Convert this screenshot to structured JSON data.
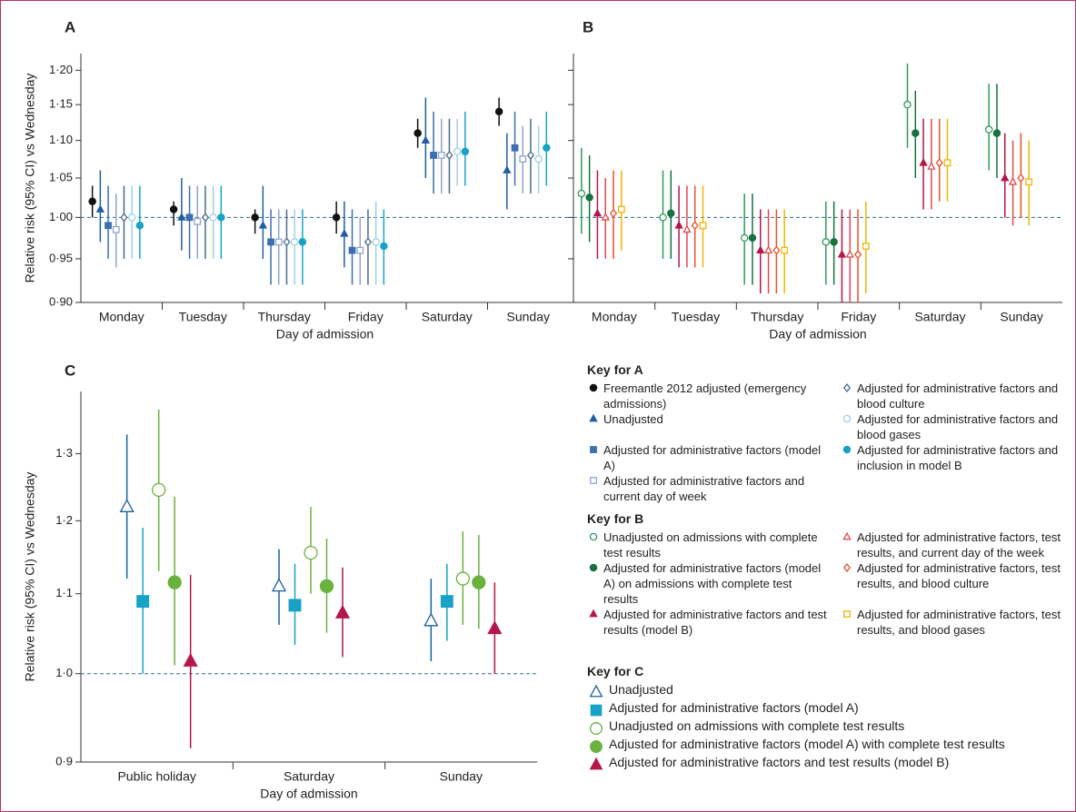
{
  "chart_data": [
    {
      "type": "errorbar",
      "label": "A",
      "y_label": "Relative risk (95% CI) vs Wednesday",
      "x_label": "Day of admission",
      "legend_title": "Key for A",
      "legend_columns": 2,
      "log_y": true,
      "refline": 1,
      "ytick_labels": true,
      "categories": [
        "Monday",
        "Tuesday",
        "Thursday",
        "Friday",
        "Saturday",
        "Sunday"
      ],
      "ylim": [
        0.9,
        1.225
      ],
      "yticks": [
        {
          "value": 0.9,
          "label": "0·90"
        },
        {
          "value": 0.95,
          "label": "0·95"
        },
        {
          "value": 1.0,
          "label": "1·00"
        },
        {
          "value": 1.05,
          "label": "1·05"
        },
        {
          "value": 1.1,
          "label": "1·10"
        },
        {
          "value": 1.15,
          "label": "1·15"
        },
        {
          "value": 1.2,
          "label": "1·20"
        }
      ],
      "series": [
        {
          "name": "Freemantle 2012 adjusted (emergency admissions)",
          "color": "#111111",
          "marker": "circle",
          "filled": true,
          "values": [
            1.02,
            1.01,
            1.0,
            1.0,
            1.11,
            1.14
          ],
          "lower": [
            1.0,
            0.99,
            0.98,
            0.98,
            1.09,
            1.12
          ],
          "upper": [
            1.04,
            1.02,
            1.01,
            1.02,
            1.13,
            1.16
          ]
        },
        {
          "name": "Unadjusted",
          "color": "#1f5fa0",
          "marker": "triangle",
          "filled": true,
          "values": [
            1.01,
            1.0,
            0.99,
            0.98,
            1.1,
            1.06
          ],
          "lower": [
            0.97,
            0.96,
            0.95,
            0.94,
            1.05,
            1.01
          ],
          "upper": [
            1.06,
            1.05,
            1.04,
            1.02,
            1.16,
            1.11
          ]
        },
        {
          "name": "Adjusted for administrative factors (model A)",
          "color": "#3d6fae",
          "marker": "square",
          "filled": true,
          "values": [
            0.99,
            1.0,
            0.97,
            0.96,
            1.08,
            1.09
          ],
          "lower": [
            0.95,
            0.95,
            0.92,
            0.92,
            1.03,
            1.04
          ],
          "upper": [
            1.04,
            1.04,
            1.01,
            1.01,
            1.14,
            1.14
          ]
        },
        {
          "name": "Adjusted for administrative factors and current day of week",
          "color": "#8fa3d2",
          "marker": "square",
          "filled": false,
          "values": [
            0.985,
            0.995,
            0.97,
            0.96,
            1.08,
            1.075
          ],
          "lower": [
            0.94,
            0.95,
            0.92,
            0.92,
            1.03,
            1.03
          ],
          "upper": [
            1.03,
            1.04,
            1.01,
            1.0,
            1.13,
            1.12
          ]
        },
        {
          "name": "Adjusted for administrative factors and blood culture",
          "color": "#4c6b8c",
          "marker": "diamond",
          "filled": false,
          "values": [
            1.0,
            1.0,
            0.97,
            0.97,
            1.08,
            1.08
          ],
          "lower": [
            0.95,
            0.95,
            0.92,
            0.92,
            1.03,
            1.03
          ],
          "upper": [
            1.04,
            1.04,
            1.01,
            1.01,
            1.13,
            1.13
          ]
        },
        {
          "name": "Adjusted for administrative factors and blood gases",
          "color": "#9fd0e8",
          "marker": "circle",
          "filled": false,
          "values": [
            1.0,
            1.0,
            0.97,
            0.97,
            1.085,
            1.075
          ],
          "lower": [
            0.95,
            0.95,
            0.92,
            0.92,
            1.04,
            1.03
          ],
          "upper": [
            1.04,
            1.04,
            1.01,
            1.02,
            1.13,
            1.12
          ]
        },
        {
          "name": "Adjusted for administrative factors and inclusion in model B",
          "color": "#17a2c6",
          "marker": "circle",
          "filled": true,
          "values": [
            0.99,
            1.0,
            0.97,
            0.965,
            1.085,
            1.09
          ],
          "lower": [
            0.95,
            0.95,
            0.92,
            0.92,
            1.04,
            1.04
          ],
          "upper": [
            1.04,
            1.04,
            1.01,
            1.01,
            1.14,
            1.14
          ]
        }
      ]
    },
    {
      "type": "errorbar",
      "label": "B",
      "x_label": "Day of admission",
      "legend_title": "Key for B",
      "legend_columns": 2,
      "log_y": true,
      "refline": 1,
      "ytick_labels": false,
      "categories": [
        "Monday",
        "Tuesday",
        "Thursday",
        "Friday",
        "Saturday",
        "Sunday"
      ],
      "ylim": [
        0.9,
        1.225
      ],
      "yticks": [
        0.9,
        0.95,
        1.0,
        1.05,
        1.1,
        1.15,
        1.2
      ],
      "series": [
        {
          "name": "Unadjusted on admissions with complete test results",
          "color": "#2f9a5a",
          "marker": "circle",
          "filled": false,
          "values": [
            1.03,
            1.0,
            0.975,
            0.97,
            1.15,
            1.115
          ],
          "lower": [
            0.98,
            0.95,
            0.92,
            0.92,
            1.09,
            1.06
          ],
          "upper": [
            1.09,
            1.06,
            1.03,
            1.02,
            1.21,
            1.18
          ]
        },
        {
          "name": "Adjusted for administrative factors (model A) on admissions with complete test results",
          "color": "#17723f",
          "marker": "circle",
          "filled": true,
          "values": [
            1.025,
            1.005,
            0.975,
            0.97,
            1.11,
            1.11
          ],
          "lower": [
            0.97,
            0.95,
            0.92,
            0.92,
            1.05,
            1.05
          ],
          "upper": [
            1.08,
            1.06,
            1.03,
            1.02,
            1.17,
            1.18
          ]
        },
        {
          "name": "Adjusted for administrative factors and test results (model B)",
          "color": "#b5174a",
          "marker": "triangle",
          "filled": true,
          "values": [
            1.005,
            0.99,
            0.96,
            0.955,
            1.07,
            1.05
          ],
          "lower": [
            0.95,
            0.94,
            0.91,
            0.9,
            1.01,
            1.0
          ],
          "upper": [
            1.06,
            1.04,
            1.01,
            1.01,
            1.13,
            1.11
          ]
        },
        {
          "name": "Adjusted for administrative factors, test results, and current day of the week",
          "color": "#e0484e",
          "marker": "triangle",
          "filled": false,
          "values": [
            1.0,
            0.985,
            0.96,
            0.955,
            1.065,
            1.045
          ],
          "lower": [
            0.95,
            0.94,
            0.91,
            0.9,
            1.01,
            0.99
          ],
          "upper": [
            1.05,
            1.04,
            1.01,
            1.01,
            1.13,
            1.1
          ]
        },
        {
          "name": "Adjusted for administrative factors, test results, and blood culture",
          "color": "#e8502e",
          "marker": "diamond",
          "filled": false,
          "values": [
            1.005,
            0.99,
            0.96,
            0.955,
            1.07,
            1.05
          ],
          "lower": [
            0.95,
            0.94,
            0.91,
            0.9,
            1.02,
            1.0
          ],
          "upper": [
            1.06,
            1.04,
            1.01,
            1.01,
            1.13,
            1.11
          ]
        },
        {
          "name": "Adjusted for administrative factors, test results, and blood gases",
          "color": "#f5b400",
          "marker": "square",
          "filled": false,
          "values": [
            1.01,
            0.99,
            0.96,
            0.965,
            1.07,
            1.045
          ],
          "lower": [
            0.96,
            0.94,
            0.91,
            0.91,
            1.02,
            0.99
          ],
          "upper": [
            1.06,
            1.04,
            1.01,
            1.02,
            1.13,
            1.1
          ]
        }
      ]
    },
    {
      "type": "errorbar",
      "label": "C",
      "y_label": "Relative risk (95% CI) vs Wednesday",
      "x_label": "Day of admission",
      "legend_title": "Key for C",
      "legend_columns": 1,
      "log_y": true,
      "refline": 1,
      "ytick_labels": true,
      "categories": [
        "Public holiday",
        "Saturday",
        "Sunday"
      ],
      "ylim": [
        0.9,
        1.4
      ],
      "yticks": [
        {
          "value": 0.9,
          "label": "0·9"
        },
        {
          "value": 1.0,
          "label": "1·0"
        },
        {
          "value": 1.1,
          "label": "1·1"
        },
        {
          "value": 1.2,
          "label": "1·2"
        },
        {
          "value": 1.3,
          "label": "1·3"
        }
      ],
      "series": [
        {
          "name": "Unadjusted",
          "color": "#1a5fa0",
          "marker": "triangle",
          "filled": false,
          "values": [
            1.22,
            1.11,
            1.065
          ],
          "lower": [
            1.12,
            1.06,
            1.015
          ],
          "upper": [
            1.33,
            1.16,
            1.12
          ]
        },
        {
          "name": "Adjusted for administrative factors (model A)",
          "color": "#17a2c6",
          "marker": "square",
          "filled": true,
          "values": [
            1.09,
            1.085,
            1.09
          ],
          "lower": [
            1.0,
            1.035,
            1.04
          ],
          "upper": [
            1.19,
            1.14,
            1.14
          ]
        },
        {
          "name": "Unadjusted on admissions with complete test results",
          "color": "#6ab23e",
          "marker": "circle",
          "filled": false,
          "values": [
            1.245,
            1.155,
            1.12
          ],
          "lower": [
            1.13,
            1.1,
            1.06
          ],
          "upper": [
            1.37,
            1.22,
            1.185
          ]
        },
        {
          "name": "Adjusted for administrative factors (model A) with complete test results",
          "color": "#6ab23e",
          "marker": "circle",
          "filled": true,
          "values": [
            1.115,
            1.11,
            1.115
          ],
          "lower": [
            1.01,
            1.05,
            1.055
          ],
          "upper": [
            1.235,
            1.175,
            1.18
          ]
        },
        {
          "name": "Adjusted for administrative factors and test results (model B)",
          "color": "#b5174a",
          "marker": "triangle",
          "filled": true,
          "values": [
            1.015,
            1.075,
            1.055
          ],
          "lower": [
            0.915,
            1.02,
            1.0
          ],
          "upper": [
            1.125,
            1.135,
            1.115
          ]
        }
      ]
    }
  ]
}
